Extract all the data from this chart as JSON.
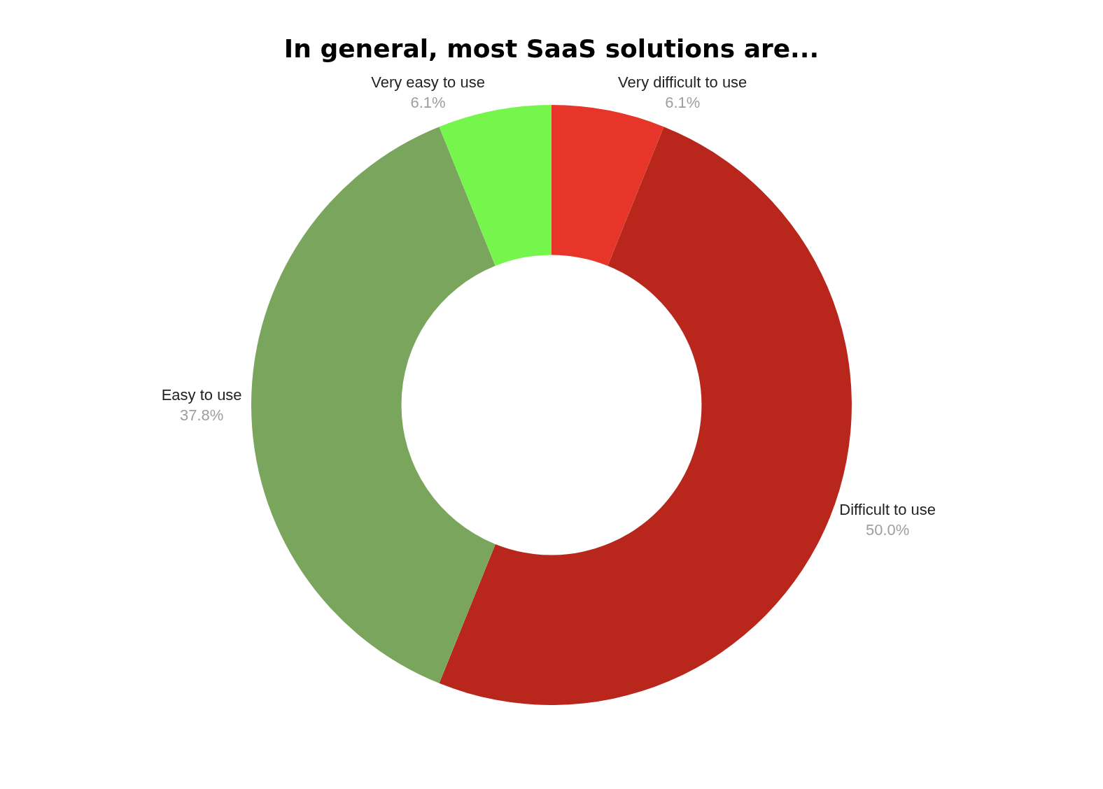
{
  "chart_data": {
    "type": "donut",
    "title": "In general, most SaaS solutions are...",
    "categories": [
      "Very difficult to use",
      "Difficult to use",
      "Easy to use",
      "Very easy to use"
    ],
    "values": [
      6.1,
      50.0,
      37.8,
      6.1
    ],
    "value_labels": [
      "6.1%",
      "50.0%",
      "37.8%",
      "6.1%"
    ],
    "colors": [
      "#e8352a",
      "#b9261c",
      "#79a65c",
      "#76f64c"
    ],
    "legend": false
  }
}
